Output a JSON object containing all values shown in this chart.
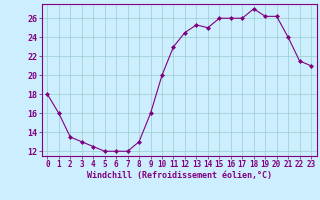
{
  "x": [
    0,
    1,
    2,
    3,
    4,
    5,
    6,
    7,
    8,
    9,
    10,
    11,
    12,
    13,
    14,
    15,
    16,
    17,
    18,
    19,
    20,
    21,
    22,
    23
  ],
  "y": [
    18,
    16,
    13.5,
    13,
    12.5,
    12,
    12,
    12,
    13,
    16,
    20,
    23,
    24.5,
    25.3,
    25,
    26,
    26,
    26,
    27,
    26.2,
    26.2,
    24,
    21.5,
    21
  ],
  "line_color": "#800080",
  "marker": "D",
  "marker_size": 2.0,
  "bg_color": "#cceeff",
  "grid_color": "#99cccc",
  "xlabel": "Windchill (Refroidissement éolien,°C)",
  "xlabel_color": "#800080",
  "tick_color": "#800080",
  "spine_color": "#800080",
  "ylim": [
    11.5,
    27.5
  ],
  "yticks": [
    12,
    14,
    16,
    18,
    20,
    22,
    24,
    26
  ],
  "xlim": [
    -0.5,
    23.5
  ],
  "xticks": [
    0,
    1,
    2,
    3,
    4,
    5,
    6,
    7,
    8,
    9,
    10,
    11,
    12,
    13,
    14,
    15,
    16,
    17,
    18,
    19,
    20,
    21,
    22,
    23
  ]
}
